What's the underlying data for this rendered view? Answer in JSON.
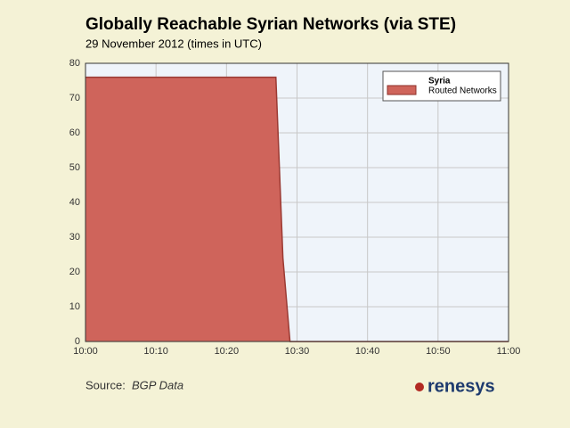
{
  "chart_data": {
    "type": "area",
    "title": "Globally Reachable Syrian Networks (via STE)",
    "subtitle": "29 November 2012 (times in UTC)",
    "x": [
      "10:00",
      "10:27",
      "10:28",
      "10:29",
      "11:00"
    ],
    "series": [
      {
        "name": "Routed Networks",
        "color": "#cf645b",
        "values": [
          76,
          76,
          24,
          0,
          0
        ]
      }
    ],
    "legend_title": "Syria",
    "legend": "upper right",
    "xlim": [
      "10:00",
      "11:00"
    ],
    "xticks": [
      "10:00",
      "10:10",
      "10:20",
      "10:30",
      "10:40",
      "10:50",
      "11:00"
    ],
    "ylim": [
      0,
      80
    ],
    "yticks": [
      0,
      10,
      20,
      30,
      40,
      50,
      60,
      70,
      80
    ],
    "grid": true,
    "source_label": "Source:",
    "source": "BGP Data",
    "brand": "renesys"
  }
}
